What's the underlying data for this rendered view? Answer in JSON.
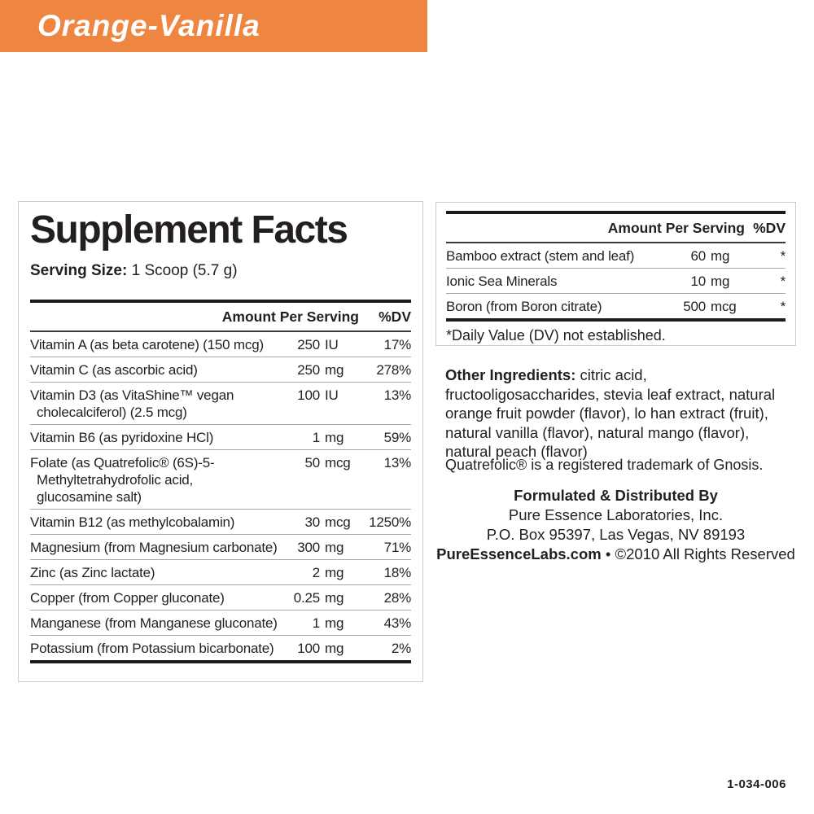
{
  "banner": {
    "label": "Orange-Vanilla",
    "color": "#EE8540"
  },
  "supplement_facts": {
    "title": "Supplement Facts",
    "serving_size_label": "Serving Size:",
    "serving_size_value": "1 Scoop (5.7 g)",
    "columns": {
      "amount": "Amount Per Serving",
      "dv": "%DV"
    },
    "rows": [
      {
        "lines": [
          "Vitamin A (as beta carotene) (150 mcg)"
        ],
        "amount": "250",
        "unit": "IU",
        "dv": "17%"
      },
      {
        "lines": [
          "Vitamin C (as ascorbic acid)"
        ],
        "amount": "250",
        "unit": "mg",
        "dv": "278%"
      },
      {
        "lines": [
          "Vitamin D3 (as VitaShine™ vegan",
          "cholecalciferol) (2.5 mcg)"
        ],
        "amount": "100",
        "unit": "IU",
        "dv": "13%"
      },
      {
        "lines": [
          "Vitamin B6 (as pyridoxine HCl)"
        ],
        "amount": "1",
        "unit": "mg",
        "dv": "59%"
      },
      {
        "lines": [
          "Folate (as Quatrefolic® (6S)-5-",
          "Methyltetrahydrofolic acid,",
          "glucosamine salt)"
        ],
        "amount": "50",
        "unit": "mcg",
        "dv": "13%"
      },
      {
        "lines": [
          "Vitamin B12 (as methylcobalamin)"
        ],
        "amount": "30",
        "unit": "mcg",
        "dv": "1250%"
      },
      {
        "lines": [
          "Magnesium (from Magnesium carbonate)"
        ],
        "amount": "300",
        "unit": "mg",
        "dv": "71%"
      },
      {
        "lines": [
          "Zinc (as Zinc lactate)"
        ],
        "amount": "2",
        "unit": "mg",
        "dv": "18%"
      },
      {
        "lines": [
          "Copper (from Copper gluconate)"
        ],
        "amount": "0.25",
        "unit": "mg",
        "dv": "28%"
      },
      {
        "lines": [
          "Manganese (from Manganese gluconate)"
        ],
        "amount": "1",
        "unit": "mg",
        "dv": "43%"
      },
      {
        "lines": [
          "Potassium (from Potassium bicarbonate)"
        ],
        "amount": "100",
        "unit": "mg",
        "dv": "2%"
      }
    ]
  },
  "secondary_panel": {
    "columns": {
      "amount": "Amount Per Serving",
      "dv": "%DV"
    },
    "rows": [
      {
        "lines": [
          "Bamboo extract (stem and leaf)"
        ],
        "amount": "60",
        "unit": "mg",
        "dv": "*"
      },
      {
        "lines": [
          "Ionic Sea Minerals"
        ],
        "amount": "10",
        "unit": "mg",
        "dv": "*"
      },
      {
        "lines": [
          "Boron (from Boron citrate)"
        ],
        "amount": "500",
        "unit": "mcg",
        "dv": "*"
      }
    ],
    "footnote": "*Daily Value (DV) not established."
  },
  "other_ingredients": {
    "label": "Other Ingredients:",
    "text": " citric acid, fructooligosaccharides, stevia leaf extract, natural orange fruit powder (flavor), lo han extract (fruit), natural vanilla (flavor), natural mango (flavor), natural peach (flavor)"
  },
  "trademark_note": "Quatrefolic® is a registered trademark of Gnosis.",
  "distributor": {
    "heading": "Formulated & Distributed By",
    "company": "Pure Essence Laboratories, Inc.",
    "address": "P.O. Box 95397, Las Vegas, NV 89193",
    "website": "PureEssenceLabs.com",
    "copyright_suffix": " • ©2010 All Rights Reserved"
  },
  "item_code": "1-034-006",
  "colors": {
    "accent_orange": "#EE8540",
    "text": "#231F20",
    "rule_gray": "#A8A8A8",
    "border_gray": "#CCCCCC"
  }
}
